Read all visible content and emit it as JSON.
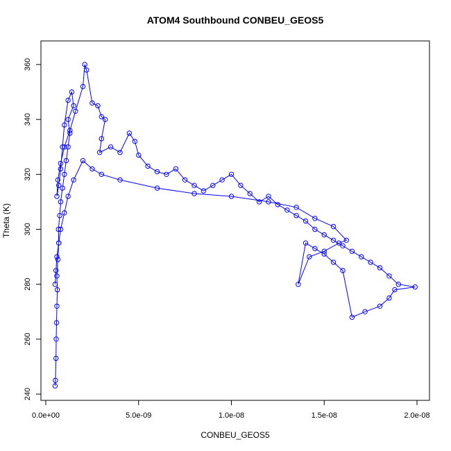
{
  "chart_data": {
    "type": "line",
    "title": "ATOM4 Southbound CONBEU_GEOS5",
    "xlabel": "CONBEU_GEOS5",
    "ylabel": "Theta (K)",
    "xlim": [
      0,
      2e-08
    ],
    "ylim": [
      240,
      365
    ],
    "x_ticks": [
      0,
      5e-09,
      1e-08,
      1.5e-08,
      2e-08
    ],
    "x_tick_labels": [
      "0.0e+00",
      "5.0e-09",
      "1.0e-08",
      "1.5e-08",
      "2.0e-08"
    ],
    "y_ticks": [
      240,
      260,
      280,
      300,
      320,
      340,
      360
    ],
    "y_tick_labels": [
      "240",
      "260",
      "280",
      "300",
      "320",
      "340",
      "360"
    ],
    "grid": false,
    "series_color": "#0000ff",
    "marker": "open-circle",
    "series": [
      {
        "x": [
          5e-10,
          5.2e-10,
          5.5e-10,
          5.6e-10,
          5.8e-10,
          6e-10,
          6.2e-10,
          6e-10,
          6.5e-10,
          7e-10,
          6.8e-10,
          7.5e-10,
          8e-10,
          9e-10,
          1e-09,
          1.1e-09,
          1.2e-09,
          1.3e-09,
          1.2e-09,
          1.5e-09,
          1.4e-09,
          1.2e-09,
          1e-09,
          9e-10,
          8e-10,
          7e-10,
          6e-10,
          6.5e-10,
          8e-10,
          1e-09,
          1.3e-09,
          1.6e-09,
          2e-09,
          2.1e-09,
          2.2e-09,
          2.5e-09,
          2.8e-09,
          3e-09,
          3.2e-09,
          3e-09,
          2.9e-09,
          3.5e-09,
          4e-09,
          4.5e-09,
          4.8e-09,
          5e-09,
          5.5e-09,
          6e-09,
          6.5e-09,
          7e-09,
          7.5e-09,
          8e-09,
          8.5e-09,
          9e-09,
          9.5e-09,
          1e-08,
          1.05e-08,
          1.1e-08,
          1.15e-08,
          1.2e-08,
          1.25e-08,
          1.3e-08,
          1.35e-08,
          1.4e-08,
          1.45e-08,
          1.5e-08,
          1.55e-08,
          1.6e-08,
          1.65e-08,
          1.7e-08,
          1.75e-08,
          1.8e-08,
          1.85e-08,
          1.9e-08,
          1.99e-08,
          1.88e-08,
          1.85e-08,
          1.8e-08,
          1.72e-08,
          1.65e-08,
          1.6e-08,
          1.55e-08,
          1.5e-08,
          1.45e-08,
          1.4e-08,
          1.36e-08,
          1.42e-08,
          1.5e-08,
          1.58e-08,
          1.62e-08,
          1.55e-08,
          1.45e-08,
          1.35e-08,
          1.2e-08,
          1e-08,
          8e-09,
          6e-09,
          4e-09,
          3e-09,
          2.5e-09,
          2e-09,
          1.5e-09,
          1.2e-09,
          1e-09,
          8e-10,
          7e-10,
          6e-10,
          5.5e-10,
          5e-10
        ],
        "y": [
          243,
          245,
          253,
          260,
          266,
          272,
          278,
          283,
          289,
          295,
          300,
          305,
          310,
          315,
          320,
          325,
          330,
          335,
          340,
          345,
          350,
          347,
          338,
          330,
          322,
          316,
          312,
          318,
          324,
          330,
          336,
          343,
          352,
          360,
          358,
          346,
          345,
          341,
          340,
          333,
          328,
          330,
          328,
          335,
          332,
          327,
          323,
          321,
          320,
          322,
          318,
          316,
          314,
          316,
          318,
          320,
          316,
          313,
          310,
          312,
          309,
          307,
          305,
          303,
          300,
          298,
          296,
          294,
          292,
          290,
          288,
          286,
          283,
          280,
          279,
          278,
          275,
          272,
          270,
          268,
          285,
          288,
          291,
          293,
          295,
          280,
          290,
          292,
          295,
          296,
          301,
          304,
          308,
          310,
          312,
          313,
          315,
          318,
          320,
          322,
          325,
          318,
          312,
          306,
          300,
          295,
          290,
          285,
          280
        ]
      }
    ]
  }
}
